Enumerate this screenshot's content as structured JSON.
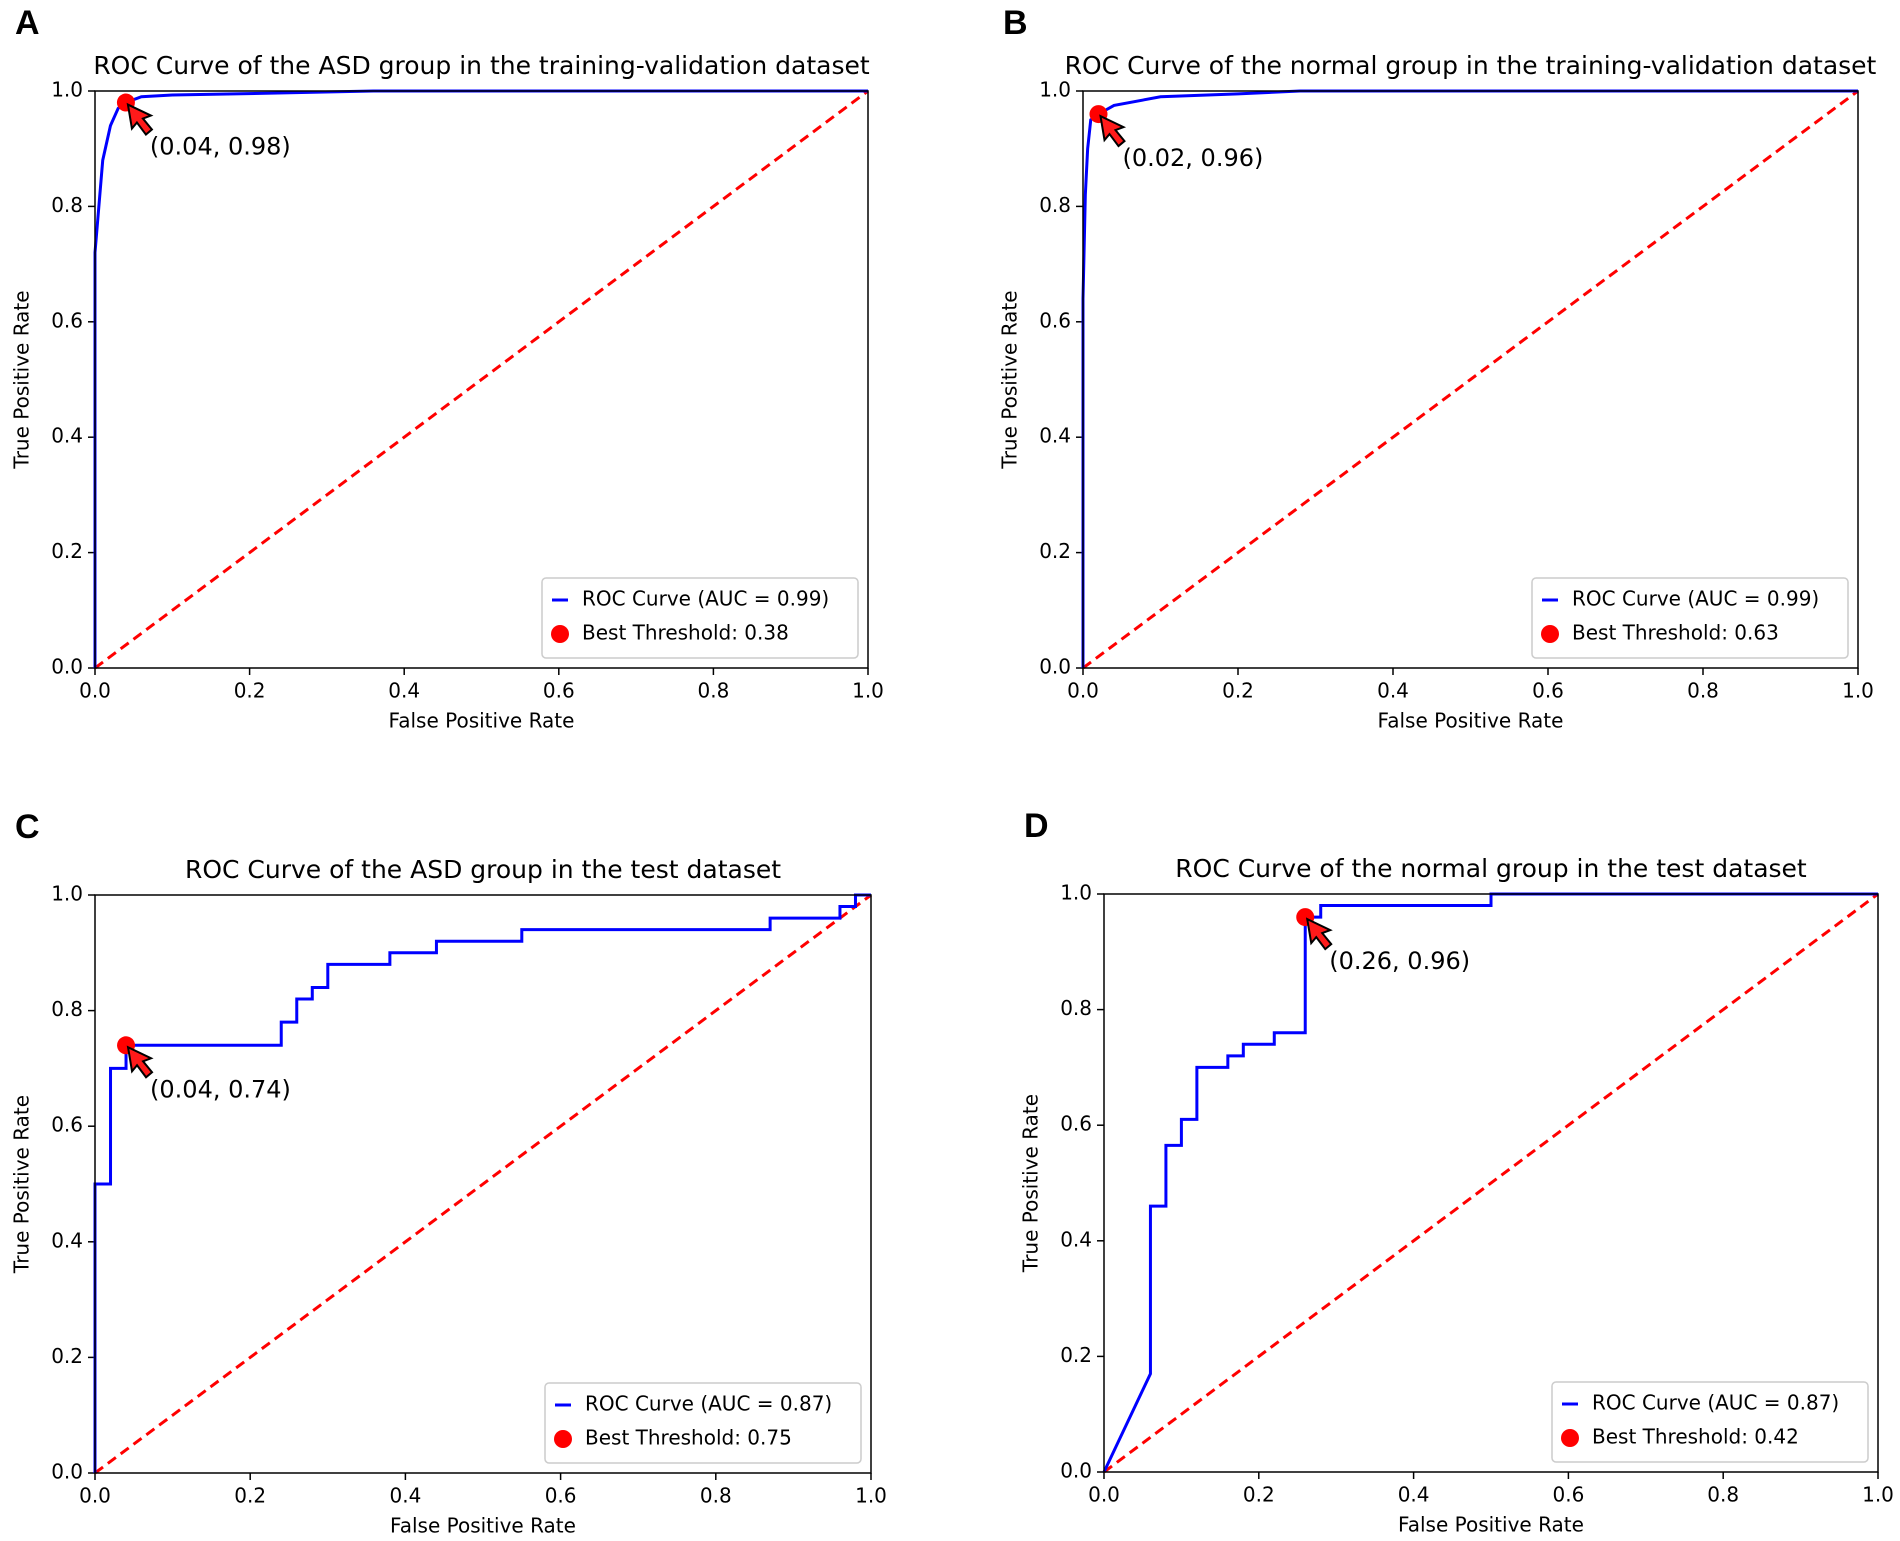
{
  "chart_data": [
    {
      "type": "line",
      "panel_label": "A",
      "title": "ROC Curve of the ASD group in the training-validation dataset",
      "x_label": "False Positive Rate",
      "y_label": "True Positive Rate",
      "xlim": [
        0,
        1
      ],
      "ylim": [
        0,
        1
      ],
      "xticks": [
        {
          "value": 0,
          "label": "0.0"
        },
        0.2,
        0.4,
        0.6,
        0.8,
        {
          "value": 1,
          "label": "1.0"
        }
      ],
      "yticks": [
        {
          "value": 0,
          "label": "0.0"
        },
        0.2,
        0.4,
        0.6,
        0.8,
        {
          "value": 1,
          "label": "1.0"
        }
      ],
      "legend": "lower right",
      "reference_line": {
        "x": [
          0,
          1
        ],
        "values": [
          0,
          1
        ],
        "color": "#ff0000",
        "style": "dashed"
      },
      "series": [
        {
          "name": "ROC Curve (AUC = 0.99)",
          "type": "line",
          "color": "#0000ff",
          "x": [
            0,
            0,
            0.005,
            0.01,
            0.02,
            0.03,
            0.04,
            0.06,
            0.1,
            0.18,
            0.36,
            1
          ],
          "values": [
            0,
            0.72,
            0.8,
            0.88,
            0.94,
            0.97,
            0.98,
            0.99,
            0.993,
            0.995,
            1,
            1
          ]
        },
        {
          "name": "Best Threshold: 0.38",
          "type": "scatter",
          "color": "#ff0000",
          "x": [
            0.04
          ],
          "values": [
            0.98
          ],
          "annotation": "(0.04, 0.98)"
        }
      ]
    },
    {
      "type": "line",
      "panel_label": "B",
      "title": "ROC Curve of the normal group in the training-validation dataset",
      "x_label": "False Positive Rate",
      "y_label": "True Positive Rate",
      "xlim": [
        0,
        1
      ],
      "ylim": [
        0,
        1
      ],
      "xticks": [
        {
          "value": 0,
          "label": "0.0"
        },
        0.2,
        0.4,
        0.6,
        0.8,
        {
          "value": 1,
          "label": "1.0"
        }
      ],
      "yticks": [
        {
          "value": 0,
          "label": "0.0"
        },
        0.2,
        0.4,
        0.6,
        0.8,
        {
          "value": 1,
          "label": "1.0"
        }
      ],
      "legend": "lower right",
      "reference_line": {
        "x": [
          0,
          1
        ],
        "values": [
          0,
          1
        ],
        "color": "#ff0000",
        "style": "dashed"
      },
      "series": [
        {
          "name": "ROC Curve (AUC = 0.99)",
          "type": "line",
          "color": "#0000ff",
          "x": [
            0,
            0,
            0.003,
            0.006,
            0.01,
            0.02,
            0.04,
            0.1,
            0.2,
            0.28,
            1
          ],
          "values": [
            0,
            0.64,
            0.82,
            0.9,
            0.95,
            0.96,
            0.975,
            0.99,
            0.995,
            1,
            1
          ]
        },
        {
          "name": "Best Threshold: 0.63",
          "type": "scatter",
          "color": "#ff0000",
          "x": [
            0.02
          ],
          "values": [
            0.96
          ],
          "annotation": "(0.02, 0.96)"
        }
      ]
    },
    {
      "type": "line",
      "panel_label": "C",
      "title": "ROC Curve of the ASD group in the test dataset",
      "x_label": "False Positive Rate",
      "y_label": "True Positive Rate",
      "xlim": [
        0,
        1
      ],
      "ylim": [
        0,
        1
      ],
      "xticks": [
        {
          "value": 0,
          "label": "0.0"
        },
        0.2,
        0.4,
        0.6,
        0.8,
        {
          "value": 1,
          "label": "1.0"
        }
      ],
      "yticks": [
        {
          "value": 0,
          "label": "0.0"
        },
        0.2,
        0.4,
        0.6,
        0.8,
        {
          "value": 1,
          "label": "1.0"
        }
      ],
      "legend": "lower right",
      "reference_line": {
        "x": [
          0,
          1
        ],
        "values": [
          0,
          1
        ],
        "color": "#ff0000",
        "style": "dashed"
      },
      "series": [
        {
          "name": "ROC Curve (AUC = 0.87)",
          "type": "line",
          "color": "#0000ff",
          "x": [
            0,
            0,
            0.02,
            0.02,
            0.04,
            0.04,
            0.24,
            0.24,
            0.26,
            0.26,
            0.28,
            0.28,
            0.3,
            0.3,
            0.38,
            0.38,
            0.44,
            0.44,
            0.55,
            0.55,
            0.87,
            0.87,
            0.96,
            0.96,
            0.98,
            0.98,
            1
          ],
          "values": [
            0,
            0.5,
            0.5,
            0.7,
            0.7,
            0.74,
            0.74,
            0.78,
            0.78,
            0.82,
            0.82,
            0.84,
            0.84,
            0.88,
            0.88,
            0.9,
            0.9,
            0.92,
            0.92,
            0.94,
            0.94,
            0.96,
            0.96,
            0.98,
            0.98,
            1,
            1
          ]
        },
        {
          "name": "Best Threshold: 0.75",
          "type": "scatter",
          "color": "#ff0000",
          "x": [
            0.04
          ],
          "values": [
            0.74
          ],
          "annotation": "(0.04, 0.74)"
        }
      ]
    },
    {
      "type": "line",
      "panel_label": "D",
      "title": "ROC Curve of the normal group in the test dataset",
      "x_label": "False Positive Rate",
      "y_label": "True Positive Rate",
      "xlim": [
        0,
        1
      ],
      "ylim": [
        0,
        1
      ],
      "xticks": [
        {
          "value": 0,
          "label": "0.0"
        },
        0.2,
        0.4,
        0.6,
        0.8,
        {
          "value": 1,
          "label": "1.0"
        }
      ],
      "yticks": [
        {
          "value": 0,
          "label": "0.0"
        },
        0.2,
        0.4,
        0.6,
        0.8,
        {
          "value": 1,
          "label": "1.0"
        }
      ],
      "legend": "lower right",
      "reference_line": {
        "x": [
          0,
          1
        ],
        "values": [
          0,
          1
        ],
        "color": "#ff0000",
        "style": "dashed"
      },
      "series": [
        {
          "name": "ROC Curve (AUC = 0.87)",
          "type": "line",
          "color": "#0000ff",
          "x": [
            0,
            0.06,
            0.06,
            0.08,
            0.08,
            0.1,
            0.1,
            0.12,
            0.12,
            0.16,
            0.16,
            0.18,
            0.18,
            0.22,
            0.22,
            0.26,
            0.26,
            0.28,
            0.28,
            0.5,
            0.5,
            1
          ],
          "values": [
            0,
            0.17,
            0.46,
            0.46,
            0.565,
            0.565,
            0.61,
            0.61,
            0.7,
            0.7,
            0.72,
            0.72,
            0.74,
            0.74,
            0.76,
            0.76,
            0.96,
            0.96,
            0.98,
            0.98,
            1,
            1
          ]
        },
        {
          "name": "Best Threshold: 0.42",
          "type": "scatter",
          "color": "#ff0000",
          "x": [
            0.26
          ],
          "values": [
            0.96
          ],
          "annotation": "(0.26, 0.96)"
        }
      ]
    }
  ]
}
